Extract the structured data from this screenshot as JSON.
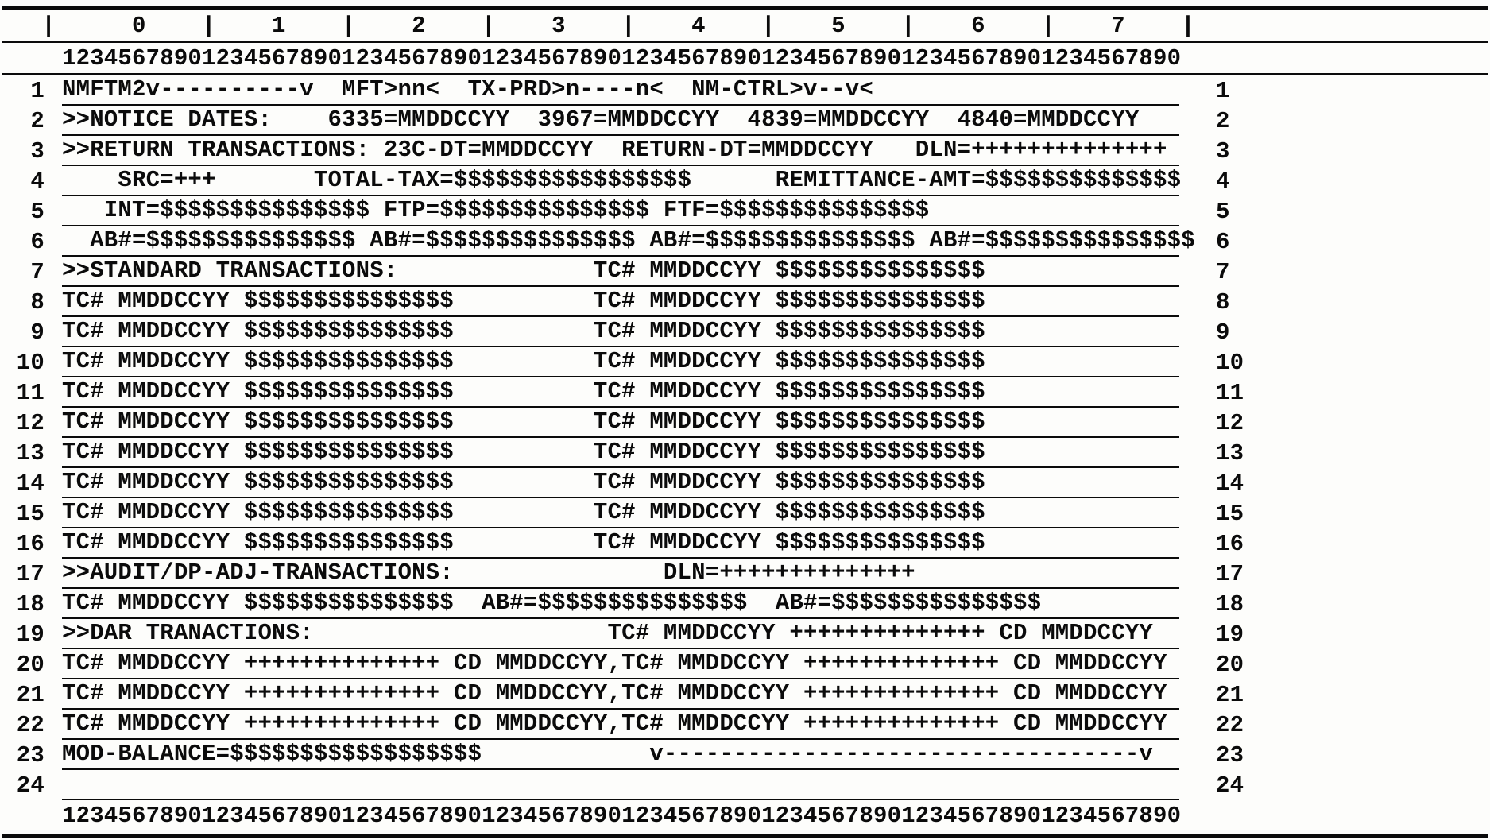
{
  "screen": {
    "command_code": "NMFTM2",
    "columns": 80,
    "row_count": 24
  },
  "ruler": {
    "gutter_bar": "|",
    "tens": "     0    |    1    |    2    |    3    |    4    |    5    |    6    |    7    |",
    "digits": "12345678901234567890123456789012345678901234567890123456789012345678901234567890"
  },
  "grid": {
    "rows": [
      {
        "num": "1",
        "text": "NMFTM2v----------v  MFT>nn<  TX-PRD>n----n<  NM-CTRL>v--v<"
      },
      {
        "num": "2",
        "text": ">>NOTICE DATES:    6335=MMDDCCYY  3967=MMDDCCYY  4839=MMDDCCYY  4840=MMDDCCYY"
      },
      {
        "num": "3",
        "text": ">>RETURN TRANSACTIONS: 23C-DT=MMDDCCYY  RETURN-DT=MMDDCCYY   DLN=++++++++++++++"
      },
      {
        "num": "4",
        "text": "    SRC=+++       TOTAL-TAX=$$$$$$$$$$$$$$$$$      REMITTANCE-AMT=$$$$$$$$$$$$$$"
      },
      {
        "num": "5",
        "text": "   INT=$$$$$$$$$$$$$$$ FTP=$$$$$$$$$$$$$$$ FTF=$$$$$$$$$$$$$$$"
      },
      {
        "num": "6",
        "text": "  AB#=$$$$$$$$$$$$$$$ AB#=$$$$$$$$$$$$$$$ AB#=$$$$$$$$$$$$$$$ AB#=$$$$$$$$$$$$$$$"
      },
      {
        "num": "7",
        "text": ">>STANDARD TRANSACTIONS:              TC# MMDDCCYY $$$$$$$$$$$$$$$"
      },
      {
        "num": "8",
        "text": "TC# MMDDCCYY $$$$$$$$$$$$$$$          TC# MMDDCCYY $$$$$$$$$$$$$$$"
      },
      {
        "num": "9",
        "text": "TC# MMDDCCYY $$$$$$$$$$$$$$$          TC# MMDDCCYY $$$$$$$$$$$$$$$"
      },
      {
        "num": "10",
        "text": "TC# MMDDCCYY $$$$$$$$$$$$$$$          TC# MMDDCCYY $$$$$$$$$$$$$$$"
      },
      {
        "num": "11",
        "text": "TC# MMDDCCYY $$$$$$$$$$$$$$$          TC# MMDDCCYY $$$$$$$$$$$$$$$"
      },
      {
        "num": "12",
        "text": "TC# MMDDCCYY $$$$$$$$$$$$$$$          TC# MMDDCCYY $$$$$$$$$$$$$$$"
      },
      {
        "num": "13",
        "text": "TC# MMDDCCYY $$$$$$$$$$$$$$$          TC# MMDDCCYY $$$$$$$$$$$$$$$"
      },
      {
        "num": "14",
        "text": "TC# MMDDCCYY $$$$$$$$$$$$$$$          TC# MMDDCCYY $$$$$$$$$$$$$$$"
      },
      {
        "num": "15",
        "text": "TC# MMDDCCYY $$$$$$$$$$$$$$$          TC# MMDDCCYY $$$$$$$$$$$$$$$"
      },
      {
        "num": "16",
        "text": "TC# MMDDCCYY $$$$$$$$$$$$$$$          TC# MMDDCCYY $$$$$$$$$$$$$$$"
      },
      {
        "num": "17",
        "text": ">>AUDIT/DP-ADJ-TRANSACTIONS:               DLN=++++++++++++++"
      },
      {
        "num": "18",
        "text": "TC# MMDDCCYY $$$$$$$$$$$$$$$  AB#=$$$$$$$$$$$$$$$  AB#=$$$$$$$$$$$$$$$"
      },
      {
        "num": "19",
        "text": ">>DAR TRANACTIONS:                     TC# MMDDCCYY ++++++++++++++ CD MMDDCCYY"
      },
      {
        "num": "20",
        "text": "TC# MMDDCCYY ++++++++++++++ CD MMDDCCYY,TC# MMDDCCYY ++++++++++++++ CD MMDDCCYY"
      },
      {
        "num": "21",
        "text": "TC# MMDDCCYY ++++++++++++++ CD MMDDCCYY,TC# MMDDCCYY ++++++++++++++ CD MMDDCCYY"
      },
      {
        "num": "22",
        "text": "TC# MMDDCCYY ++++++++++++++ CD MMDDCCYY,TC# MMDDCCYY ++++++++++++++ CD MMDDCCYY"
      },
      {
        "num": "23",
        "text": "MOD-BALANCE=$$$$$$$$$$$$$$$$$$            v----------------------------------v"
      },
      {
        "num": "24",
        "text": ""
      }
    ]
  }
}
